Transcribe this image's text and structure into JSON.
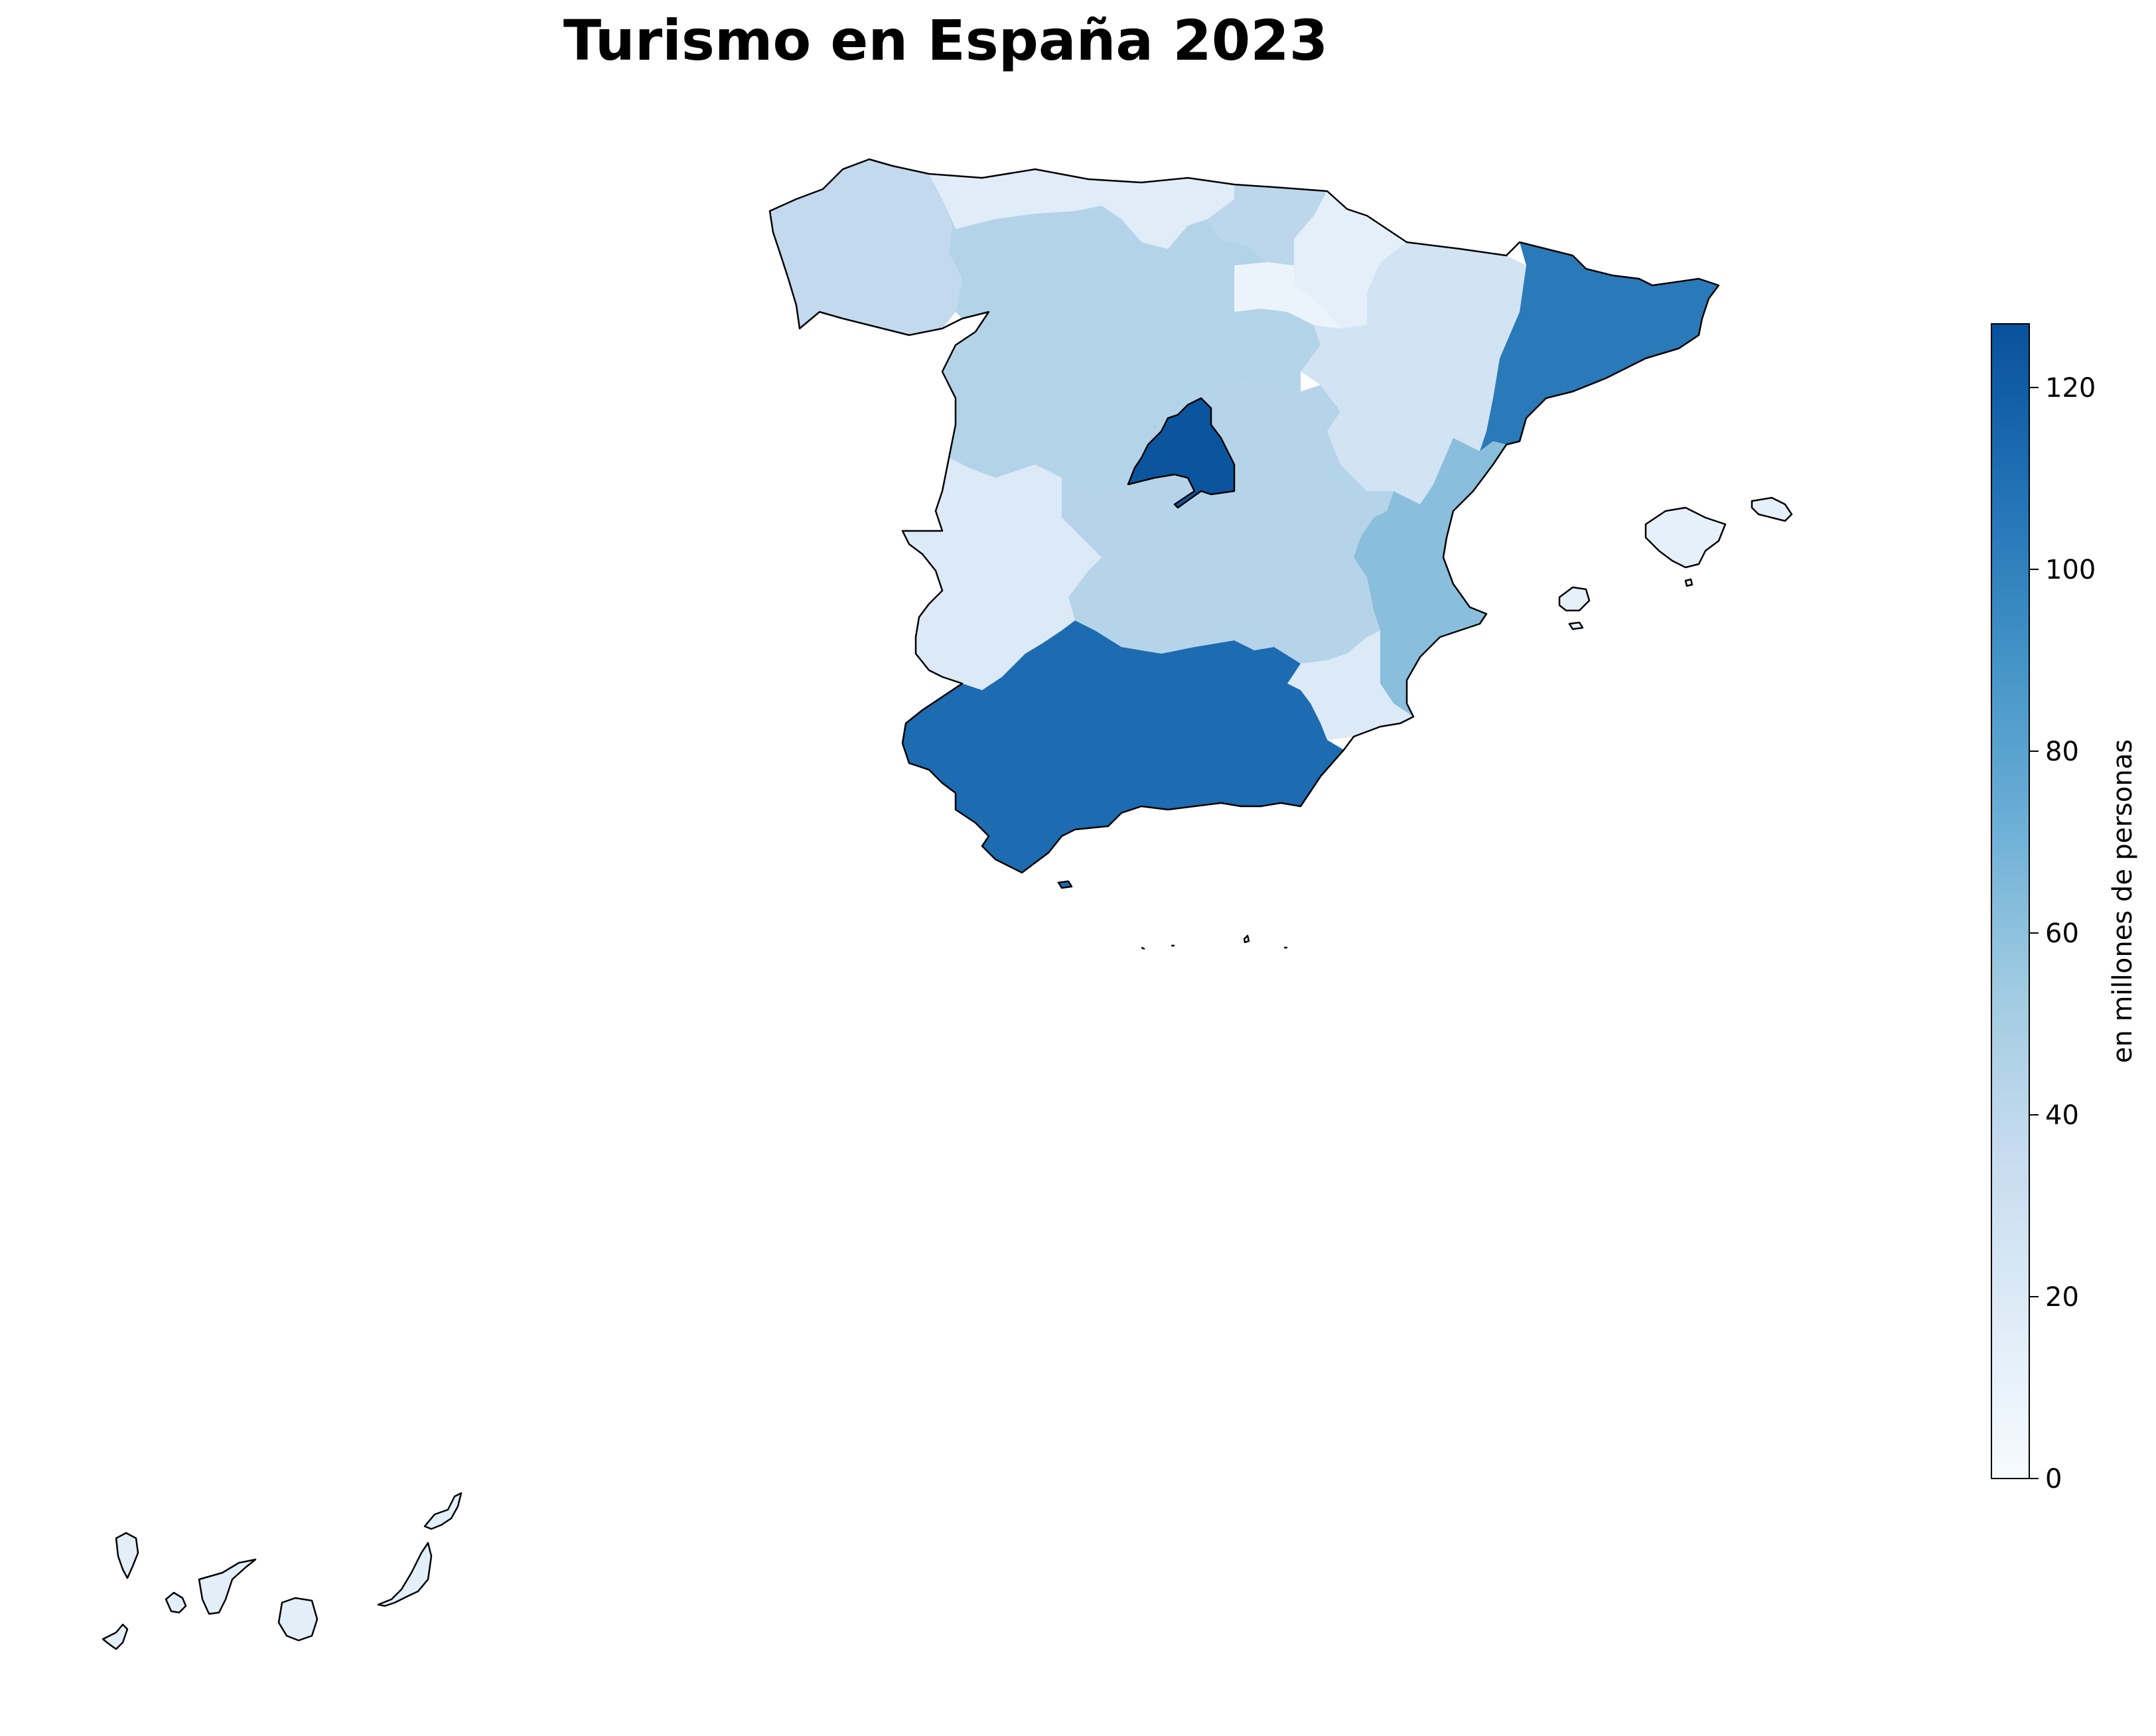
{
  "title": "Turismo en España 2023",
  "colorbar": {
    "label": "en millones de personas",
    "min": 0,
    "max": 127,
    "ticks": [
      0,
      20,
      40,
      60,
      80,
      100,
      120
    ],
    "colormap": "Blues",
    "stops": [
      "#f7fbff",
      "#deebf7",
      "#c6dbef",
      "#9ecae1",
      "#6baed6",
      "#4292c6",
      "#2171b5",
      "#08519c"
    ]
  },
  "regions": [
    {
      "id": "galicia",
      "value": 38
    },
    {
      "id": "asturias-cantabria",
      "value": 17
    },
    {
      "id": "pais-vasco",
      "value": 41
    },
    {
      "id": "navarra",
      "value": 14
    },
    {
      "id": "la-rioja",
      "value": 8
    },
    {
      "id": "castilla-y-leon",
      "value": 45
    },
    {
      "id": "aragon",
      "value": 27
    },
    {
      "id": "cataluna",
      "value": 104
    },
    {
      "id": "madrid",
      "value": 125
    },
    {
      "id": "castilla-la-mancha",
      "value": 44
    },
    {
      "id": "extremadura",
      "value": 20
    },
    {
      "id": "comunidad-valenciana",
      "value": 62
    },
    {
      "id": "murcia",
      "value": 20
    },
    {
      "id": "andalucia",
      "value": 112
    },
    {
      "id": "baleares",
      "value": 12
    },
    {
      "id": "canarias",
      "value": 15
    }
  ]
}
